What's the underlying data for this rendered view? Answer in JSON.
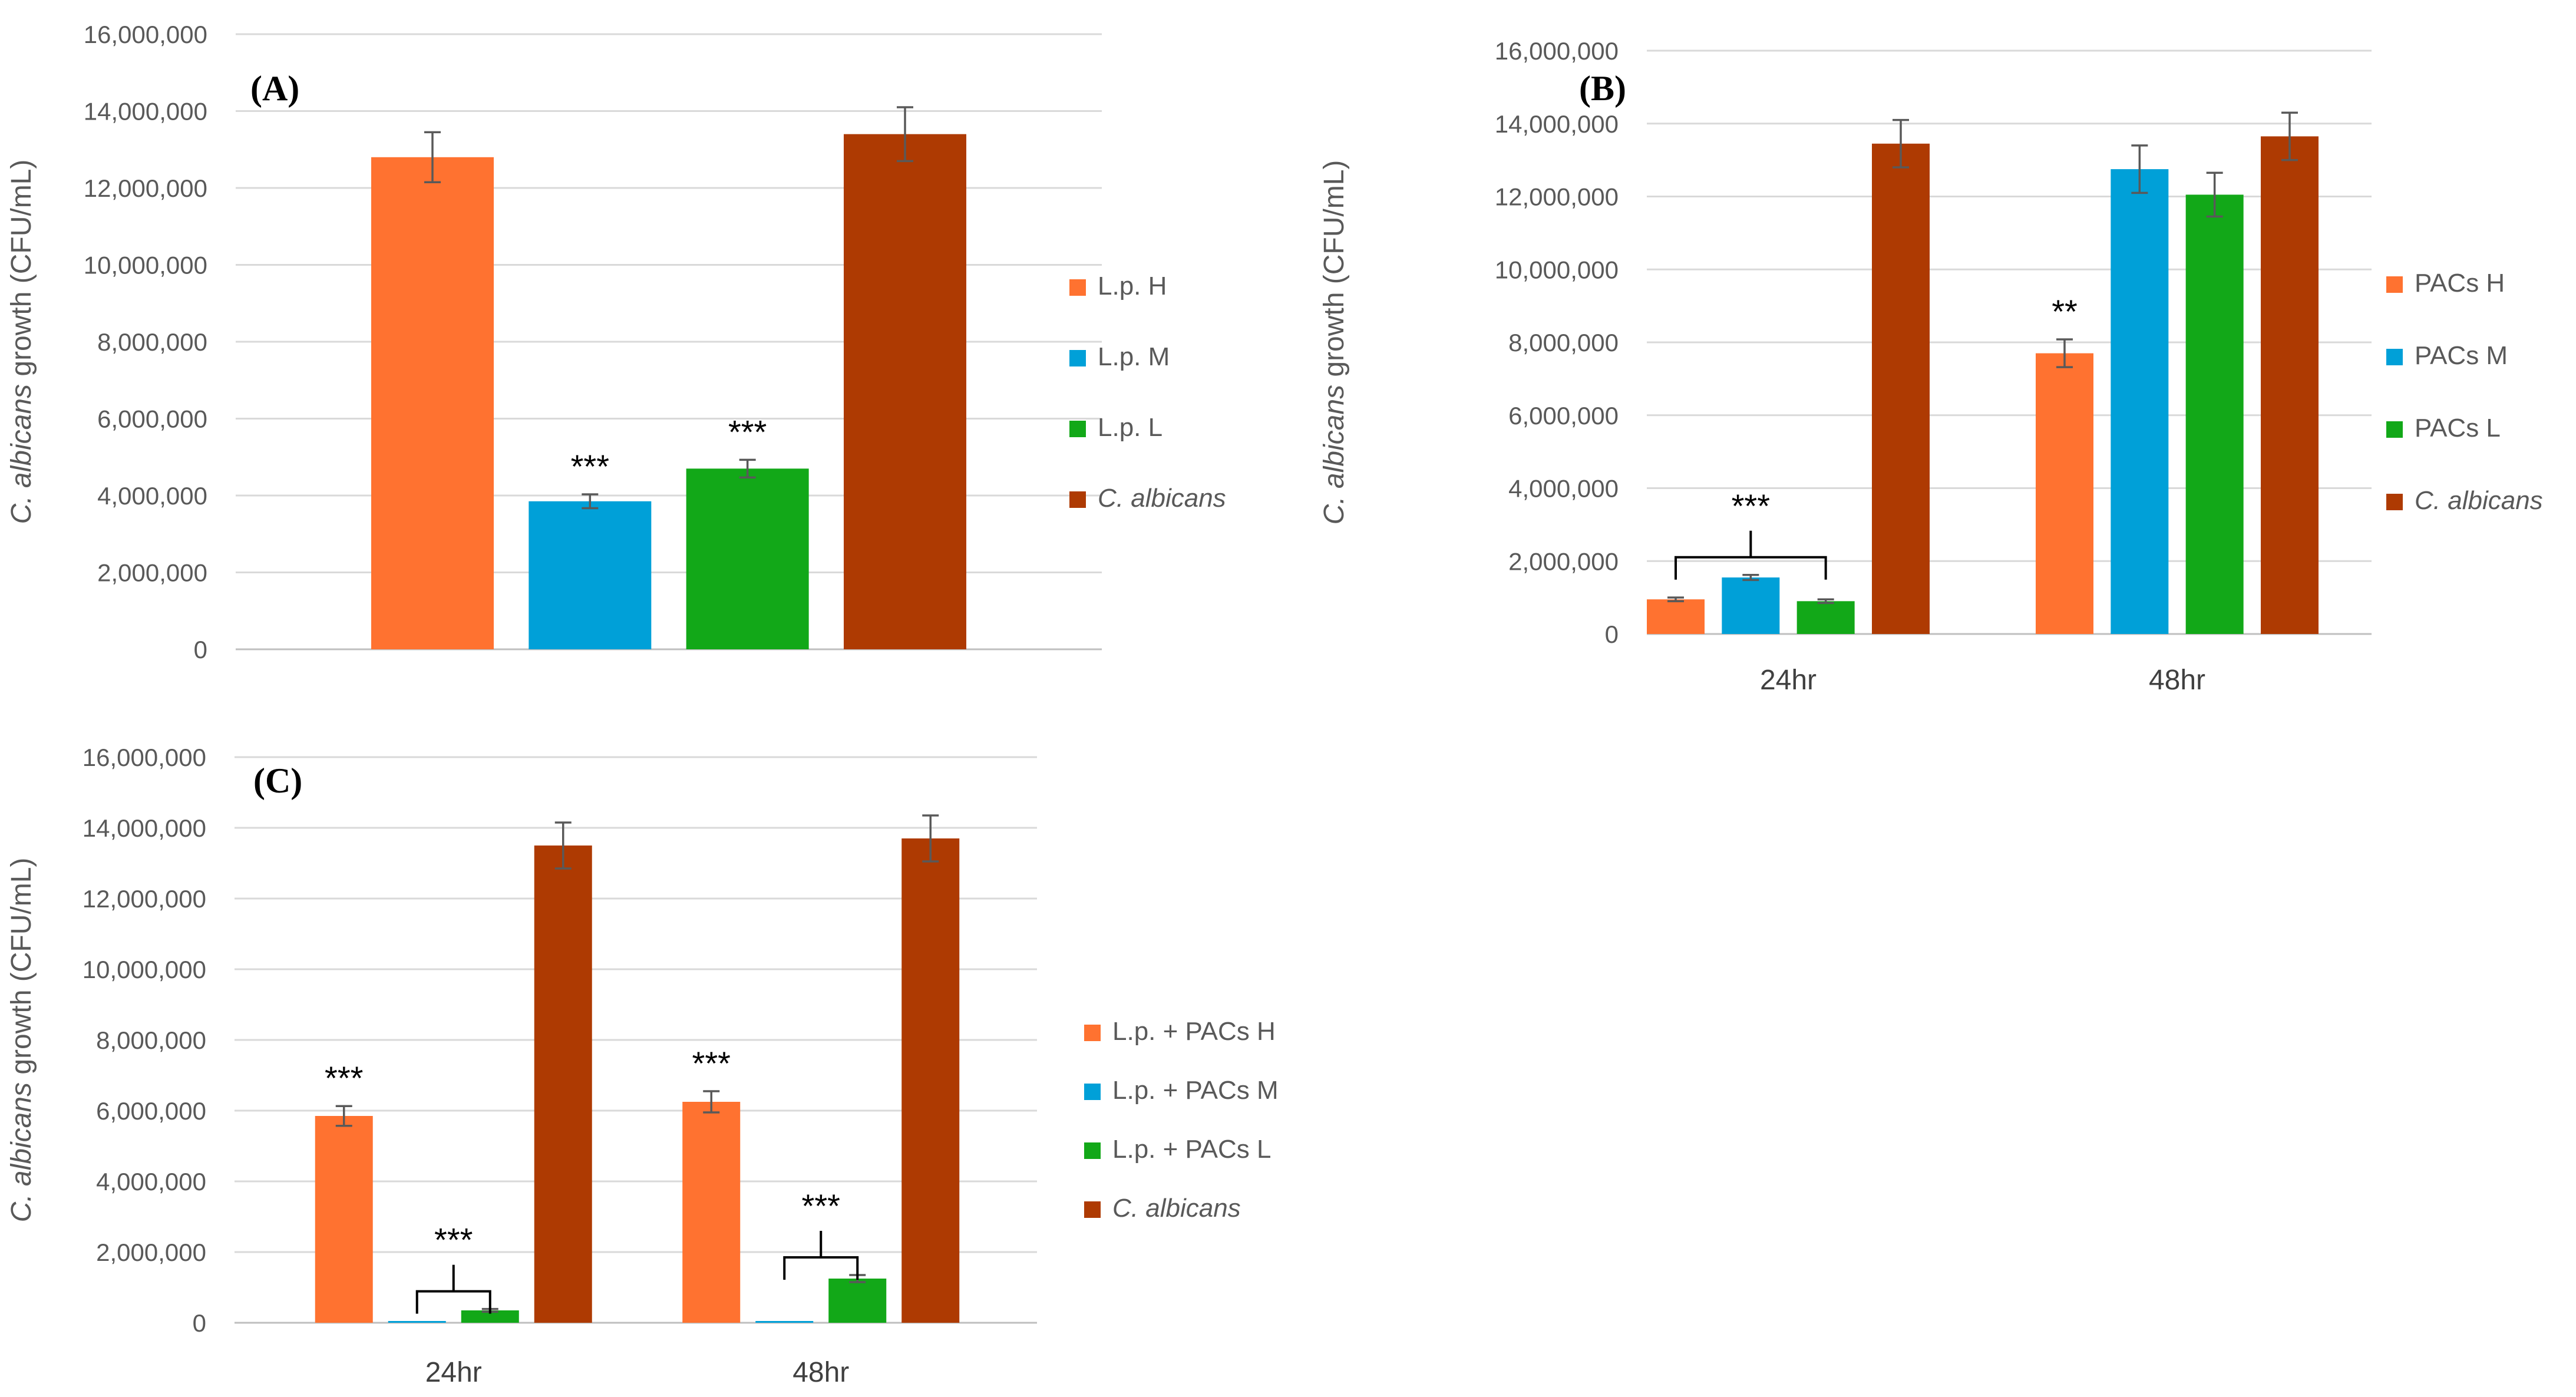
{
  "colors": {
    "H": "#ff7230",
    "M": "#00a0d8",
    "L": "#12a818",
    "C": "#ae3a02"
  },
  "chart_data": [
    {
      "id": "A",
      "type": "bar",
      "panel_label": "(A)",
      "ylabel_parts": [
        {
          "t": "C. albicans",
          "i": true
        },
        {
          "t": " growth (CFU/mL)",
          "i": false
        }
      ],
      "ylim": [
        0,
        16000000
      ],
      "yticks": [
        "0",
        "2,000,000",
        "4,000,000",
        "6,000,000",
        "8,000,000",
        "10,000,000",
        "12,000,000",
        "14,000,000",
        "16,000,000"
      ],
      "grid": true,
      "legend_position": "right",
      "categories": [
        ""
      ],
      "series": [
        {
          "name": "L.p. H",
          "italic": false,
          "color": "H",
          "values": [
            12800000
          ],
          "errors": [
            650000
          ],
          "sig": [
            ""
          ]
        },
        {
          "name": "L.p. M",
          "italic": false,
          "color": "M",
          "values": [
            3850000
          ],
          "errors": [
            180000
          ],
          "sig": [
            "***"
          ]
        },
        {
          "name": "L.p. L",
          "italic": false,
          "color": "L",
          "values": [
            4700000
          ],
          "errors": [
            230000
          ],
          "sig": [
            "***"
          ]
        },
        {
          "name": "C. albicans",
          "italic": true,
          "color": "C",
          "values": [
            13400000
          ],
          "errors": [
            700000
          ],
          "sig": [
            ""
          ]
        }
      ],
      "brackets": []
    },
    {
      "id": "B",
      "type": "bar",
      "panel_label": "(B)",
      "ylabel_parts": [
        {
          "t": "C. albicans",
          "i": true
        },
        {
          "t": " growth (CFU/mL)",
          "i": false
        }
      ],
      "ylim": [
        0,
        16000000
      ],
      "yticks": [
        "0",
        "2,000,000",
        "4,000,000",
        "6,000,000",
        "8,000,000",
        "10,000,000",
        "12,000,000",
        "14,000,000",
        "16,000,000"
      ],
      "grid": true,
      "legend_position": "right",
      "categories": [
        "24hr",
        "48hr"
      ],
      "series": [
        {
          "name": "PACs H",
          "italic": false,
          "color": "H",
          "values": [
            950000,
            7700000
          ],
          "errors": [
            50000,
            380000
          ],
          "sig": [
            "",
            "**"
          ]
        },
        {
          "name": "PACs M",
          "italic": false,
          "color": "M",
          "values": [
            1550000,
            12750000
          ],
          "errors": [
            70000,
            650000
          ],
          "sig": [
            "",
            ""
          ]
        },
        {
          "name": "PACs L",
          "italic": false,
          "color": "L",
          "values": [
            900000,
            12050000
          ],
          "errors": [
            50000,
            600000
          ],
          "sig": [
            "",
            ""
          ]
        },
        {
          "name": "C. albicans",
          "italic": true,
          "color": "C",
          "values": [
            13450000,
            13650000
          ],
          "errors": [
            650000,
            650000
          ],
          "sig": [
            "",
            ""
          ]
        }
      ],
      "brackets": [
        {
          "category": 0,
          "from": 0,
          "to": 2,
          "label": "***"
        }
      ]
    },
    {
      "id": "C",
      "type": "bar",
      "panel_label": "(C)",
      "ylabel_parts": [
        {
          "t": "C. albicans",
          "i": true
        },
        {
          "t": " growth (CFU/mL)",
          "i": false
        }
      ],
      "ylim": [
        0,
        16000000
      ],
      "yticks": [
        "0",
        "2,000,000",
        "4,000,000",
        "6,000,000",
        "8,000,000",
        "10,000,000",
        "12,000,000",
        "14,000,000",
        "16,000,000"
      ],
      "grid": true,
      "legend_position": "right",
      "categories": [
        "24hr",
        "48hr"
      ],
      "series": [
        {
          "name": "L.p. + PACs H",
          "italic": false,
          "color": "H",
          "values": [
            5850000,
            6250000
          ],
          "errors": [
            280000,
            300000
          ],
          "sig": [
            "***",
            "***"
          ]
        },
        {
          "name": "L.p. + PACs M",
          "italic": false,
          "color": "M",
          "values": [
            0,
            0
          ],
          "errors": [
            0,
            0
          ],
          "sig": [
            "",
            ""
          ]
        },
        {
          "name": "L.p. + PACs L",
          "italic": false,
          "color": "L",
          "values": [
            350000,
            1250000
          ],
          "errors": [
            40000,
            100000
          ],
          "sig": [
            "",
            ""
          ]
        },
        {
          "name": "C. albicans",
          "italic": true,
          "color": "C",
          "values": [
            13500000,
            13700000
          ],
          "errors": [
            650000,
            650000
          ],
          "sig": [
            "",
            ""
          ]
        }
      ],
      "brackets": [
        {
          "category": 0,
          "from": 1,
          "to": 2,
          "label": "***"
        },
        {
          "category": 1,
          "from": 1,
          "to": 2,
          "label": "***"
        }
      ]
    }
  ]
}
